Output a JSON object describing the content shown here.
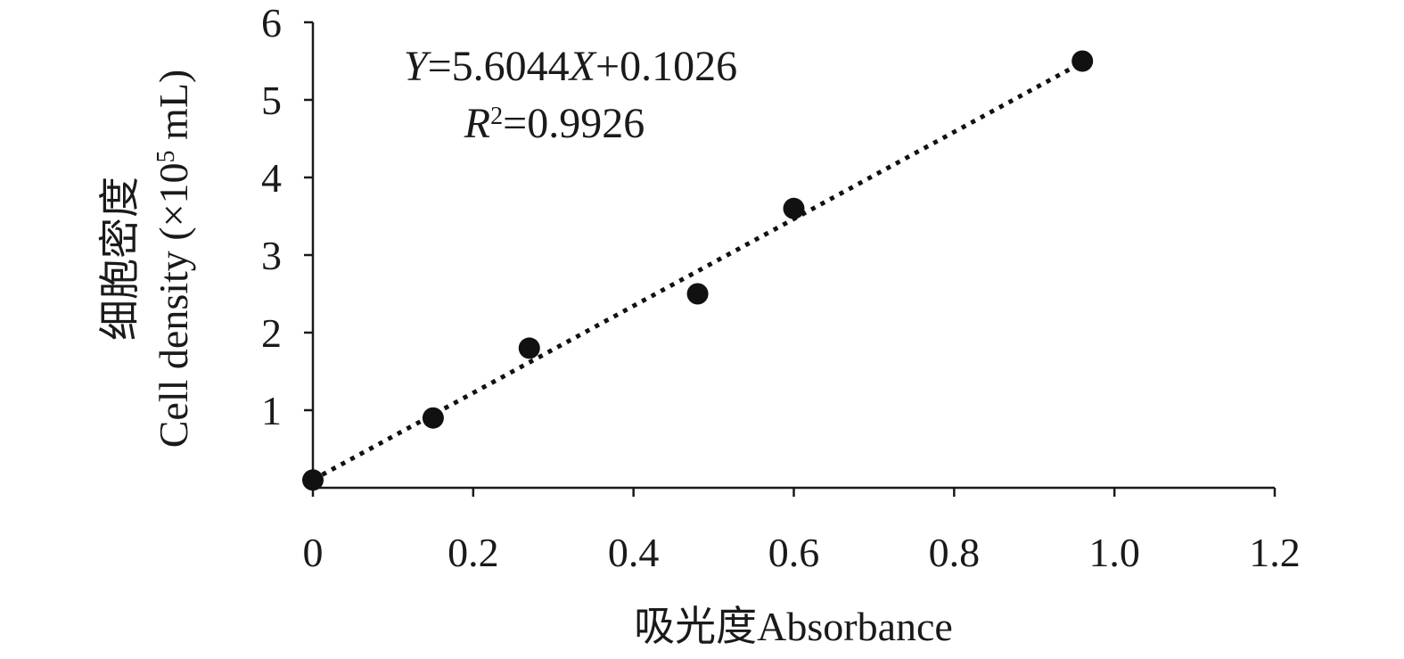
{
  "chart_data": {
    "type": "scatter",
    "x": [
      0,
      0.15,
      0.27,
      0.48,
      0.6,
      0.96
    ],
    "y": [
      0.1,
      0.9,
      1.8,
      2.5,
      3.6,
      5.5
    ],
    "xlim": [
      0,
      1.2
    ],
    "ylim": [
      0,
      6
    ],
    "x_ticks": [
      "0",
      "0.2",
      "0.4",
      "0.6",
      "0.8",
      "1.0",
      "1.2"
    ],
    "y_ticks": [
      "1",
      "2",
      "3",
      "4",
      "5",
      "6"
    ],
    "x_tick_values": [
      0,
      0.2,
      0.4,
      0.6,
      0.8,
      1.0,
      1.2
    ],
    "y_tick_values": [
      1,
      2,
      3,
      4,
      5,
      6
    ],
    "xlabel": "吸光度Absorbance",
    "ylabel_line1": "细胞密度",
    "ylabel_line2_pre": "Cell density (×10",
    "ylabel_sup": "5",
    "ylabel_line2_post": " mL)",
    "trendline": {
      "slope": 5.6044,
      "intercept": 0.1026,
      "style": "dotted",
      "x_range": [
        0,
        0.96
      ]
    },
    "equation": {
      "y_var": "Y",
      "eq_mid": "=5.6044",
      "x_var": "X",
      "eq_tail": "+0.1026"
    },
    "r_squared": {
      "r_var": "R",
      "sup": "2",
      "value_text": "=0.9926"
    },
    "grid": false,
    "legend": "none",
    "marker_color": "#111111",
    "axis_color": "#1a1a1a"
  }
}
